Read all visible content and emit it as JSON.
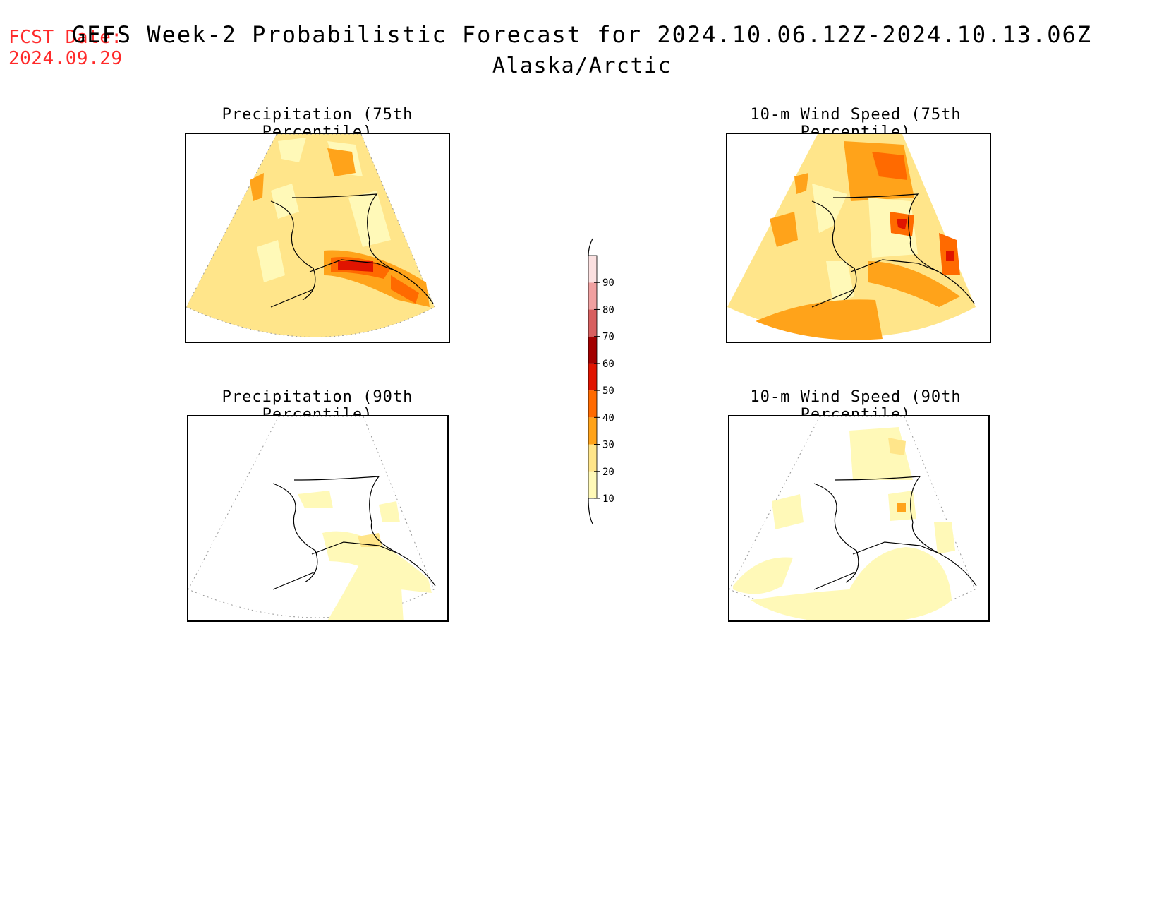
{
  "header": {
    "fcst_line1": "FCST Date:",
    "fcst_line2": "2024.09.29",
    "title": "GEFS Week-2 Probabilistic Forecast for 2024.10.06.12Z-2024.10.13.06Z",
    "subtitle": "Alaska/Arctic"
  },
  "panels": [
    {
      "id": "p75",
      "title": "Precipitation (75th Percentile)"
    },
    {
      "id": "p90",
      "title": "Precipitation (90th Percentile)"
    },
    {
      "id": "w75",
      "title": "10-m Wind Speed (75th Percentile)"
    },
    {
      "id": "w90",
      "title": "10-m Wind Speed (90th Percentile)"
    }
  ],
  "legend": {
    "levels": [
      "10",
      "20",
      "30",
      "40",
      "50",
      "60",
      "70",
      "80",
      "90"
    ],
    "colors": [
      "#fff9b8",
      "#ffe58a",
      "#ffa31a",
      "#ff6a00",
      "#e01400",
      "#a30000",
      "#d86060",
      "#f0a0a0",
      "#fbe0e0"
    ]
  }
}
